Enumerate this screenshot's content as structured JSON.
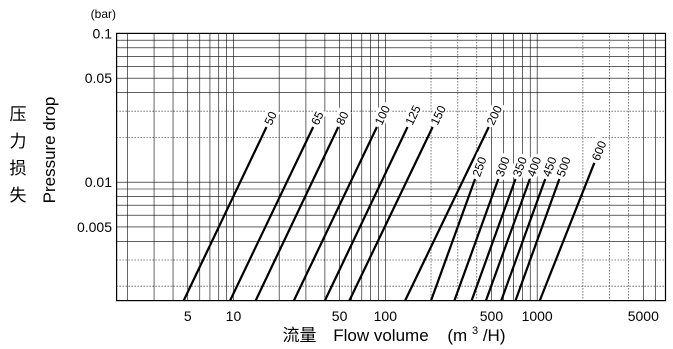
{
  "chart_data": {
    "type": "line",
    "title": "",
    "x_scale": "log",
    "y_scale": "log",
    "xlim": [
      1.7,
      7000
    ],
    "ylim": [
      0.0016,
      0.1
    ],
    "y_unit": "(bar)",
    "ylabel": "Pressure drop",
    "ylabel_zh": "压力损失",
    "xlabel_zh": "流量",
    "xlabel_main": "Flow volume",
    "xlabel_unit_prefix": "(m",
    "xlabel_unit_sup": "3",
    "xlabel_unit_suffix": "/H)",
    "x_ticks": [
      {
        "value": 5,
        "label": "5"
      },
      {
        "value": 10,
        "label": "10"
      },
      {
        "value": 50,
        "label": "50"
      },
      {
        "value": 100,
        "label": "100"
      },
      {
        "value": 500,
        "label": "500"
      },
      {
        "value": 1000,
        "label": "1000"
      },
      {
        "value": 5000,
        "label": "5000"
      }
    ],
    "y_ticks": [
      {
        "value": 0.1,
        "label": "0.1"
      },
      {
        "value": 0.05,
        "label": "0.05"
      },
      {
        "value": 0.01,
        "label": "0.01"
      },
      {
        "value": 0.005,
        "label": "0.005"
      }
    ],
    "grid": true,
    "series": [
      {
        "name": "50",
        "points": [
          [
            4.7,
            0.0016
          ],
          [
            16.5,
            0.0235
          ]
        ]
      },
      {
        "name": "65",
        "points": [
          [
            9.5,
            0.0016
          ],
          [
            33.5,
            0.0235
          ]
        ]
      },
      {
        "name": "80",
        "points": [
          [
            14,
            0.0016
          ],
          [
            49,
            0.0235
          ]
        ]
      },
      {
        "name": "100",
        "points": [
          [
            25,
            0.0016
          ],
          [
            88,
            0.0235
          ]
        ]
      },
      {
        "name": "125",
        "points": [
          [
            40,
            0.0016
          ],
          [
            140,
            0.0235
          ]
        ]
      },
      {
        "name": "150",
        "points": [
          [
            58,
            0.0016
          ],
          [
            205,
            0.0235
          ]
        ]
      },
      {
        "name": "200",
        "points": [
          [
            135,
            0.0016
          ],
          [
            480,
            0.0235
          ]
        ]
      },
      {
        "name": "250",
        "points": [
          [
            200,
            0.0016
          ],
          [
            390,
            0.0105
          ]
        ]
      },
      {
        "name": "300",
        "points": [
          [
            285,
            0.0016
          ],
          [
            555,
            0.0105
          ]
        ]
      },
      {
        "name": "350",
        "points": [
          [
            370,
            0.0016
          ],
          [
            720,
            0.0105
          ]
        ]
      },
      {
        "name": "400",
        "points": [
          [
            460,
            0.0016
          ],
          [
            895,
            0.0105
          ]
        ]
      },
      {
        "name": "450",
        "points": [
          [
            580,
            0.0016
          ],
          [
            1130,
            0.0105
          ]
        ]
      },
      {
        "name": "500",
        "points": [
          [
            720,
            0.0016
          ],
          [
            1400,
            0.0105
          ]
        ]
      },
      {
        "name": "600",
        "points": [
          [
            1040,
            0.0016
          ],
          [
            2380,
            0.0135
          ]
        ]
      }
    ]
  }
}
